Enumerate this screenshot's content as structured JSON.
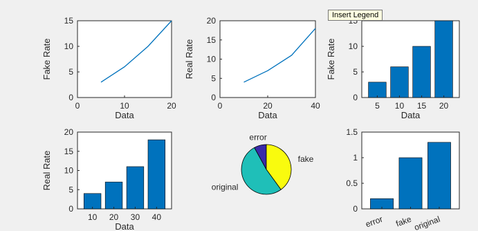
{
  "tooltip": "Insert Legend",
  "colors": {
    "line": "#0072BD",
    "bar": "#0072BD",
    "axis": "#262626"
  },
  "chart_data": [
    {
      "type": "line",
      "xlabel": "Data",
      "ylabel": "Fake Rate",
      "x": [
        5,
        10,
        15,
        20
      ],
      "y": [
        3,
        6,
        10,
        15
      ],
      "xlim": [
        0,
        20
      ],
      "ylim": [
        0,
        15
      ],
      "xticks": [
        0,
        10,
        20
      ],
      "yticks": [
        0,
        5,
        10,
        15
      ]
    },
    {
      "type": "line",
      "xlabel": "Data",
      "ylabel": "Real Rate",
      "x": [
        10,
        20,
        30,
        40
      ],
      "y": [
        4,
        7,
        11,
        18
      ],
      "xlim": [
        0,
        40
      ],
      "ylim": [
        0,
        20
      ],
      "xticks": [
        0,
        20,
        40
      ],
      "yticks": [
        0,
        5,
        10,
        15,
        20
      ]
    },
    {
      "type": "bar",
      "xlabel": "Data",
      "ylabel": "Fake Rate",
      "categories": [
        "5",
        "10",
        "15",
        "20"
      ],
      "values": [
        3,
        6,
        10,
        15
      ],
      "ylim": [
        0,
        15
      ],
      "yticks": [
        0,
        5,
        10,
        15
      ]
    },
    {
      "type": "bar",
      "xlabel": "Data",
      "ylabel": "Real Rate",
      "categories": [
        "10",
        "20",
        "30",
        "40"
      ],
      "values": [
        4,
        7,
        11,
        18
      ],
      "ylim": [
        0,
        20
      ],
      "yticks": [
        0,
        5,
        10,
        15,
        20
      ]
    },
    {
      "type": "pie",
      "labels": [
        "error",
        "fake",
        "original"
      ],
      "values": [
        0.2,
        1.0,
        1.3
      ],
      "colors": [
        "#3a2ba8",
        "#f9fb0e",
        "#1fbfb8"
      ]
    },
    {
      "type": "bar",
      "xlabel": "",
      "ylabel": "",
      "categories": [
        "error",
        "fake",
        "original"
      ],
      "values": [
        0.2,
        1.0,
        1.3
      ],
      "ylim": [
        0,
        1.5
      ],
      "yticks": [
        0,
        0.5,
        1,
        1.5
      ]
    }
  ]
}
